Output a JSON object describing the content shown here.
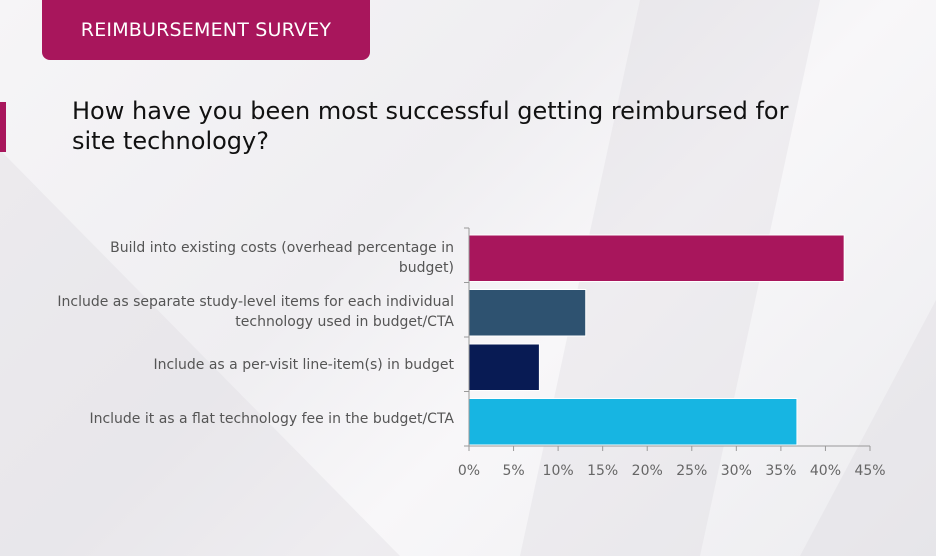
{
  "header": {
    "banner": "REIMBURSEMENT SURVEY",
    "question": "How have you been most successful getting reimbursed for site technology?"
  },
  "chart_data": {
    "type": "bar",
    "orientation": "horizontal",
    "title": "",
    "xlabel": "",
    "ylabel": "",
    "categories": [
      "Build into existing costs (overhead percentage in budget)",
      "Include as separate study-level items for each individual technology used in budget/CTA",
      "Include as a per-visit line-item(s) in budget",
      "Include it as a flat technology fee in the budget/CTA"
    ],
    "values": [
      42.1,
      13.1,
      7.9,
      36.8
    ],
    "colors": [
      "#a8165c",
      "#2e5270",
      "#081b54",
      "#17b5e2"
    ],
    "xlim": [
      0,
      45
    ],
    "xticks": [
      "0%",
      "5%",
      "10%",
      "15%",
      "20%",
      "25%",
      "30%",
      "35%",
      "40%",
      "45%"
    ],
    "grid": false
  }
}
